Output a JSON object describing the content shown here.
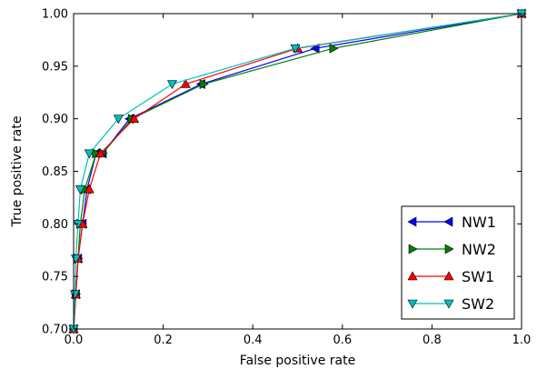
{
  "chart_data": {
    "type": "line",
    "title": "",
    "xlabel": "False positive rate",
    "ylabel": "True positive rate",
    "xlim": [
      0.0,
      1.0
    ],
    "ylim": [
      0.7,
      1.0
    ],
    "xticks": [
      "0.0",
      "0.2",
      "0.4",
      "0.6",
      "0.8",
      "1.0"
    ],
    "yticks": [
      "0.70",
      "0.75",
      "0.80",
      "0.85",
      "0.90",
      "0.95",
      "1.00"
    ],
    "legend_position": "lower-right",
    "grid": false,
    "series": [
      {
        "name": "NW1",
        "color": "#0000ff",
        "marker": "triangle-left",
        "x": [
          0.0,
          0.005,
          0.01,
          0.02,
          0.03,
          0.05,
          0.065,
          0.125,
          0.285,
          0.54,
          1.0
        ],
        "y": [
          0.7,
          0.733,
          0.767,
          0.8,
          0.833,
          0.867,
          0.867,
          0.9,
          0.933,
          0.967,
          1.0
        ]
      },
      {
        "name": "NW2",
        "color": "#008000",
        "marker": "triangle-right",
        "x": [
          0.0,
          0.005,
          0.01,
          0.015,
          0.025,
          0.05,
          0.065,
          0.13,
          0.29,
          0.58,
          1.0
        ],
        "y": [
          0.7,
          0.733,
          0.767,
          0.8,
          0.833,
          0.867,
          0.867,
          0.9,
          0.933,
          0.967,
          1.0
        ]
      },
      {
        "name": "SW1",
        "color": "#ff0000",
        "marker": "triangle-up",
        "x": [
          0.0,
          0.005,
          0.01,
          0.02,
          0.035,
          0.06,
          0.135,
          0.25,
          0.5,
          1.0
        ],
        "y": [
          0.7,
          0.733,
          0.767,
          0.8,
          0.833,
          0.867,
          0.9,
          0.933,
          0.967,
          1.0
        ]
      },
      {
        "name": "SW2",
        "color": "#00bfbf",
        "marker": "triangle-down",
        "x": [
          0.0,
          0.003,
          0.005,
          0.01,
          0.015,
          0.035,
          0.1,
          0.22,
          0.495,
          1.0
        ],
        "y": [
          0.7,
          0.733,
          0.767,
          0.8,
          0.833,
          0.867,
          0.9,
          0.933,
          0.967,
          1.0
        ]
      }
    ]
  }
}
